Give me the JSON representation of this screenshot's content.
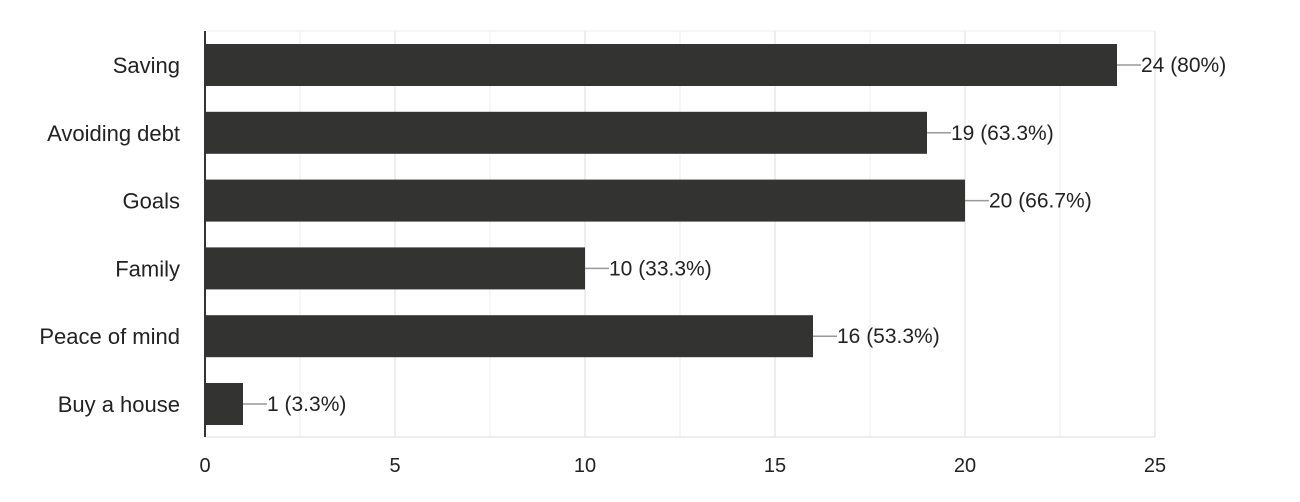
{
  "chart_data": {
    "type": "bar",
    "orientation": "horizontal",
    "categories": [
      "Saving",
      "Avoiding debt",
      "Goals",
      "Family",
      "Peace of mind",
      "Buy a house"
    ],
    "values": [
      24,
      19,
      20,
      10,
      16,
      1
    ],
    "data_labels": [
      "24 (80%)",
      "19 (63.3%)",
      "20 (66.7%)",
      "10 (33.3%)",
      "16 (53.3%)",
      "1 (3.3%)"
    ],
    "xlim": [
      0,
      25
    ],
    "x_ticks": [
      0,
      5,
      10,
      15,
      20,
      25
    ],
    "grid": true,
    "bar_color": "#333431",
    "grid_color": "#e8e8e8"
  }
}
